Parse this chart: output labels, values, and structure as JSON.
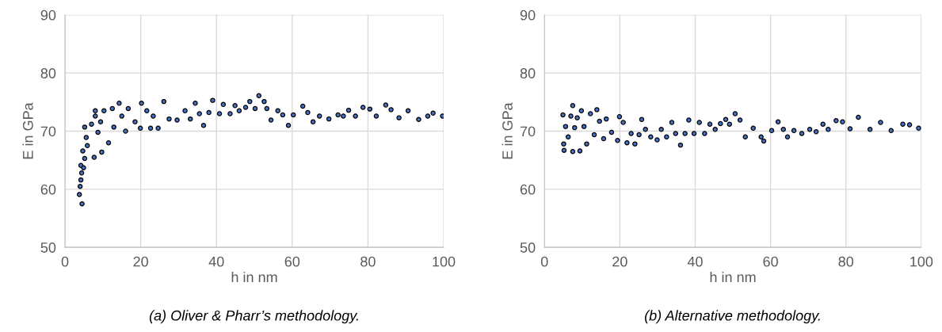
{
  "chart_data": [
    {
      "type": "scatter",
      "title": "(a) Oliver & Pharr’s methodology.",
      "xlabel": "h in nm",
      "ylabel": "E in GPa",
      "xlim": [
        0,
        100
      ],
      "xticks": [
        0,
        20,
        40,
        60,
        80,
        100
      ],
      "ylim": [
        50,
        90
      ],
      "yticks": [
        50,
        60,
        70,
        80,
        90
      ],
      "grid": true,
      "marker": "circle",
      "series": [
        {
          "color": "#4472c4",
          "x": [
            3.8,
            4.5,
            4.0,
            4.2,
            4.4,
            4.2,
            4.9,
            4.7,
            5.2,
            5.2,
            5.6,
            5.9,
            7.0,
            7.7,
            8.0,
            8.0,
            8.7,
            9.4,
            9.7,
            10.3,
            11.5,
            12.5,
            12.9,
            14.3,
            15.0,
            16.0,
            16.7,
            18.5,
            19.9,
            20.2,
            21.6,
            22.6,
            23.3,
            24.6,
            26.1,
            27.5,
            29.6,
            31.7,
            33.1,
            34.4,
            35.5,
            36.6,
            38.0,
            39.0,
            40.8,
            41.8,
            43.6,
            44.9,
            46.0,
            47.7,
            48.8,
            50.2,
            51.2,
            52.6,
            53.3,
            54.4,
            56.2,
            57.5,
            59.0,
            60.3,
            62.8,
            64.1,
            65.5,
            67.2,
            69.7,
            72.1,
            73.5,
            74.9,
            76.7,
            78.7,
            80.5,
            82.2,
            84.7,
            86.1,
            88.2,
            90.6,
            93.4,
            95.8,
            97.2,
            99.7
          ],
          "values": [
            59.1,
            57.5,
            60.5,
            61.6,
            62.8,
            64.1,
            63.7,
            66.6,
            65.3,
            70.7,
            68.9,
            67.5,
            71.2,
            65.5,
            73.5,
            72.6,
            69.8,
            71.6,
            66.4,
            73.5,
            68.0,
            73.9,
            70.7,
            74.8,
            72.6,
            70.0,
            73.9,
            71.6,
            70.5,
            74.8,
            73.5,
            70.5,
            72.6,
            70.5,
            75.1,
            72.1,
            71.9,
            73.5,
            72.1,
            74.8,
            73.0,
            71.0,
            73.2,
            75.3,
            73.0,
            74.6,
            73.0,
            74.4,
            73.5,
            74.1,
            75.1,
            73.9,
            76.1,
            75.1,
            73.9,
            71.9,
            73.5,
            72.8,
            71.0,
            72.8,
            74.3,
            73.2,
            71.6,
            72.6,
            72.1,
            72.8,
            72.6,
            73.6,
            72.6,
            74.1,
            73.8,
            72.6,
            74.5,
            73.7,
            72.3,
            73.5,
            72.0,
            72.6,
            73.1,
            72.6
          ]
        }
      ]
    },
    {
      "type": "scatter",
      "title": "(b) Alternative methodology.",
      "xlabel": "h in nm",
      "ylabel": "E in GPa",
      "xlim": [
        0,
        100
      ],
      "xticks": [
        0,
        20,
        40,
        60,
        80,
        100
      ],
      "ylim": [
        50,
        90
      ],
      "yticks": [
        50,
        60,
        70,
        80,
        90
      ],
      "grid": true,
      "marker": "circle",
      "series": [
        {
          "color": "#4472c4",
          "x": [
            4.9,
            5.2,
            5.1,
            5.6,
            6.3,
            7.0,
            7.5,
            7.5,
            8.0,
            8.7,
            9.4,
            9.8,
            10.5,
            11.2,
            12.2,
            13.2,
            13.9,
            14.6,
            15.7,
            16.4,
            17.8,
            19.4,
            19.9,
            20.9,
            21.9,
            23.0,
            24.0,
            25.1,
            25.8,
            26.8,
            28.2,
            29.9,
            31.0,
            32.4,
            33.8,
            34.8,
            36.1,
            37.3,
            38.3,
            39.7,
            41.1,
            42.5,
            43.9,
            45.3,
            46.7,
            48.1,
            49.1,
            50.6,
            51.9,
            53.3,
            55.4,
            57.5,
            58.2,
            60.3,
            62.0,
            63.4,
            64.5,
            66.2,
            68.3,
            70.4,
            72.1,
            73.9,
            75.3,
            77.4,
            79.1,
            81.1,
            83.3,
            86.4,
            89.2,
            92.0,
            95.1,
            96.9,
            99.3
          ],
          "values": [
            72.8,
            66.7,
            67.8,
            70.8,
            69.0,
            72.6,
            74.4,
            66.5,
            70.6,
            72.3,
            66.6,
            73.5,
            70.8,
            67.8,
            73.0,
            69.4,
            73.7,
            71.7,
            68.7,
            72.1,
            69.8,
            68.4,
            72.5,
            71.5,
            68.0,
            69.6,
            67.8,
            69.4,
            72.0,
            70.3,
            69.0,
            68.5,
            70.3,
            69.0,
            71.5,
            69.6,
            67.6,
            69.6,
            71.9,
            69.6,
            71.5,
            69.6,
            71.2,
            70.3,
            71.3,
            72.0,
            71.2,
            73.0,
            71.9,
            69.0,
            70.5,
            69.0,
            68.3,
            70.1,
            71.6,
            70.3,
            69.0,
            70.1,
            69.6,
            70.3,
            69.9,
            71.2,
            70.3,
            71.8,
            71.6,
            70.4,
            72.4,
            70.3,
            71.5,
            70.1,
            71.2,
            71.1,
            70.5
          ]
        }
      ]
    }
  ]
}
